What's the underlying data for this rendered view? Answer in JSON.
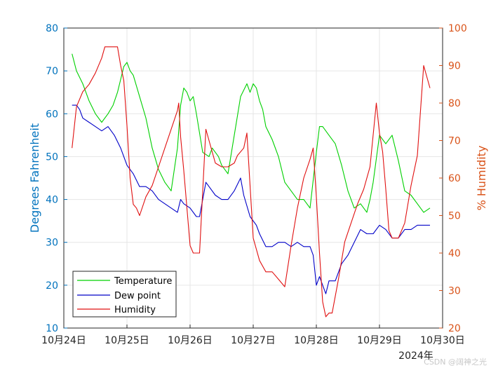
{
  "chart_data": {
    "type": "line",
    "xlabel_extra": "2024年",
    "x_tick_labels": [
      "10月24日",
      "10月25日",
      "10月26日",
      "10月27日",
      "10月28日",
      "10月29日",
      "10月30日"
    ],
    "x_range_days": [
      0,
      6.0
    ],
    "left_axis": {
      "label": "Degrees Fahrenheit",
      "ylim": [
        10,
        80
      ],
      "ticks": [
        10,
        20,
        30,
        40,
        50,
        60,
        70,
        80
      ],
      "color": "#0072bd"
    },
    "right_axis": {
      "label": "% Humidity",
      "ylim": [
        20,
        100
      ],
      "ticks": [
        20,
        30,
        40,
        50,
        60,
        70,
        80,
        90,
        100
      ],
      "color": "#d95319"
    },
    "grid": true,
    "series": [
      {
        "name": "Temperature",
        "axis": "left",
        "color": "#00d000",
        "x": [
          0.13,
          0.2,
          0.3,
          0.4,
          0.5,
          0.6,
          0.7,
          0.78,
          0.85,
          0.9,
          0.95,
          1.0,
          1.05,
          1.1,
          1.2,
          1.3,
          1.4,
          1.5,
          1.6,
          1.7,
          1.8,
          1.85,
          1.9,
          1.95,
          2.0,
          2.05,
          2.1,
          2.2,
          2.3,
          2.35,
          2.45,
          2.5,
          2.6,
          2.7,
          2.8,
          2.9,
          2.95,
          3.0,
          3.05,
          3.1,
          3.15,
          3.2,
          3.3,
          3.4,
          3.5,
          3.6,
          3.7,
          3.8,
          3.9,
          4.0,
          4.05,
          4.1,
          4.2,
          4.3,
          4.4,
          4.5,
          4.6,
          4.7,
          4.8,
          4.85,
          4.9,
          5.0,
          5.1,
          5.2,
          5.3,
          5.4,
          5.5,
          5.6,
          5.7,
          5.8
        ],
        "y": [
          74,
          70,
          67,
          63,
          60,
          58,
          60,
          62,
          65,
          68,
          71,
          72,
          70,
          69,
          64,
          59,
          52,
          47,
          44,
          42,
          52,
          62,
          66,
          65,
          63,
          64,
          60,
          51,
          50,
          52,
          50,
          48,
          46,
          55,
          64,
          67,
          65,
          67,
          66,
          63,
          61,
          57,
          54,
          50,
          44,
          42,
          40,
          40,
          38,
          51,
          57,
          57,
          55,
          53,
          48,
          42,
          38,
          39,
          37,
          40,
          44,
          55,
          53,
          55,
          49,
          42,
          41,
          39,
          37,
          38
        ]
      },
      {
        "name": "Dew point",
        "axis": "left",
        "color": "#0000c8",
        "x": [
          0.13,
          0.2,
          0.25,
          0.3,
          0.4,
          0.5,
          0.6,
          0.7,
          0.8,
          0.9,
          1.0,
          1.1,
          1.2,
          1.3,
          1.4,
          1.5,
          1.6,
          1.7,
          1.8,
          1.85,
          1.9,
          2.0,
          2.1,
          2.15,
          2.25,
          2.3,
          2.4,
          2.5,
          2.6,
          2.7,
          2.8,
          2.85,
          2.95,
          3.05,
          3.1,
          3.2,
          3.3,
          3.4,
          3.5,
          3.6,
          3.7,
          3.8,
          3.9,
          3.95,
          4.0,
          4.05,
          4.1,
          4.15,
          4.2,
          4.3,
          4.4,
          4.5,
          4.6,
          4.7,
          4.8,
          4.9,
          5.0,
          5.1,
          5.2,
          5.3,
          5.4,
          5.5,
          5.6,
          5.7,
          5.8
        ],
        "y": [
          62,
          62,
          61,
          59,
          58,
          57,
          56,
          57,
          55,
          52,
          48,
          46,
          43,
          43,
          42,
          40,
          39,
          38,
          37,
          40,
          39,
          38,
          36,
          36,
          44,
          43,
          41,
          40,
          40,
          42,
          45,
          41,
          36,
          34,
          32,
          29,
          29,
          30,
          30,
          29,
          30,
          29,
          29,
          27,
          20,
          22,
          20,
          18,
          21,
          21,
          25,
          27,
          30,
          33,
          32,
          32,
          34,
          33,
          31,
          31,
          33,
          33,
          34,
          34,
          34
        ]
      },
      {
        "name": "Humidity",
        "axis": "right",
        "color": "#e01010",
        "x": [
          0.13,
          0.2,
          0.3,
          0.4,
          0.5,
          0.6,
          0.65,
          0.75,
          0.85,
          0.9,
          0.95,
          1.0,
          1.05,
          1.1,
          1.15,
          1.2,
          1.3,
          1.4,
          1.5,
          1.6,
          1.7,
          1.8,
          1.82,
          1.85,
          1.9,
          2.0,
          2.05,
          2.15,
          2.25,
          2.3,
          2.4,
          2.5,
          2.6,
          2.7,
          2.75,
          2.85,
          2.9,
          3.0,
          3.1,
          3.2,
          3.3,
          3.4,
          3.5,
          3.6,
          3.7,
          3.8,
          3.9,
          3.95,
          4.0,
          4.05,
          4.1,
          4.15,
          4.2,
          4.25,
          4.35,
          4.45,
          4.55,
          4.65,
          4.75,
          4.85,
          4.95,
          5.0,
          5.05,
          5.1,
          5.15,
          5.2,
          5.3,
          5.4,
          5.5,
          5.6,
          5.65,
          5.7,
          5.8
        ],
        "y": [
          68,
          79,
          83,
          85,
          88,
          92,
          95,
          95,
          95,
          90,
          86,
          74,
          60,
          53,
          52,
          50,
          55,
          58,
          63,
          68,
          73,
          78,
          80,
          71,
          62,
          42,
          40,
          40,
          73,
          70,
          64,
          63,
          63,
          64,
          66,
          68,
          72,
          44,
          38,
          35,
          35,
          33,
          31,
          42,
          52,
          60,
          65,
          68,
          55,
          40,
          27,
          23,
          24,
          24,
          33,
          43,
          48,
          53,
          57,
          63,
          80,
          72,
          67,
          57,
          46,
          44,
          44,
          48,
          58,
          66,
          78,
          90,
          84
        ]
      }
    ]
  },
  "legend": {
    "items": [
      {
        "label": "Temperature",
        "color": "#00d000"
      },
      {
        "label": "Dew point",
        "color": "#0000c8"
      },
      {
        "label": "Humidity",
        "color": "#e01010"
      }
    ]
  },
  "watermark": "CSDN @阔神之光"
}
